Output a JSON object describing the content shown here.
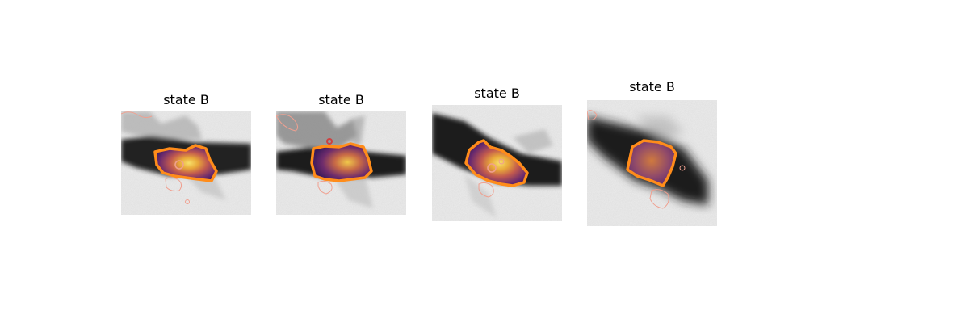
{
  "panels": [
    {
      "title": "state B"
    },
    {
      "title": "state B"
    },
    {
      "title": "state B"
    },
    {
      "title": "state B"
    }
  ],
  "colors": {
    "outline": "#ff8c1a",
    "secondary_outline": "#f0a090",
    "background": "#f0f0f0",
    "cell_dark": "#1a1a1a"
  }
}
